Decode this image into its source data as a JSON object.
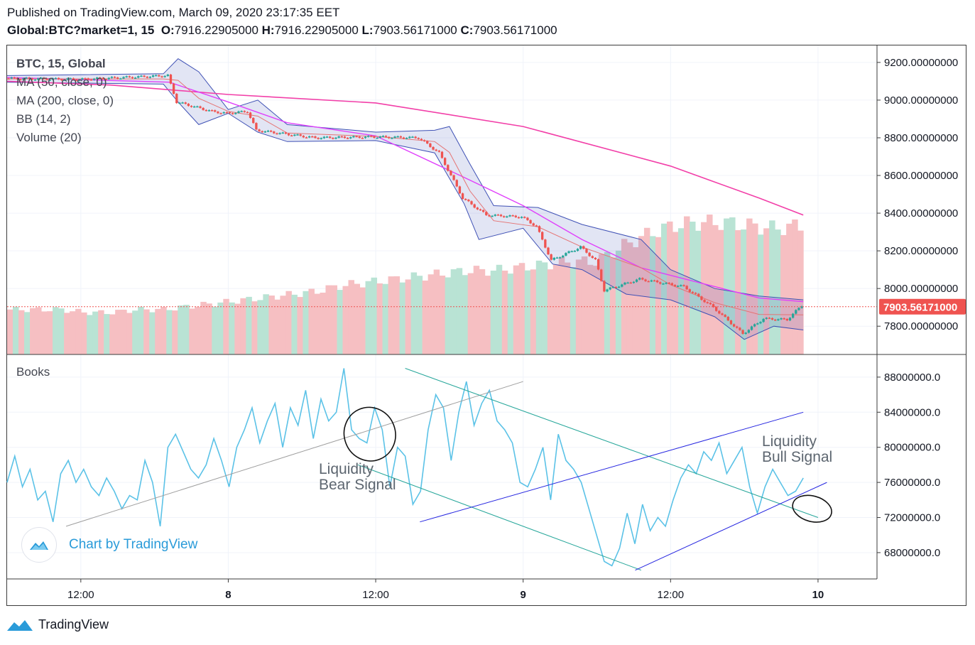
{
  "header": {
    "published": "Published on TradingView.com, March 09, 2020 23:17:35 EET",
    "symbol": "Global:BTC?market=1, 15",
    "o_label": "O:",
    "o": "7916.22905000",
    "h_label": "H:",
    "h": "7916.22905000",
    "l_label": "L:",
    "l": "7903.56171000",
    "c_label": "C:",
    "c": "7903.56171000"
  },
  "legend": {
    "title": "BTC, 15, Global",
    "ma50": "MA (50, close, 0)",
    "ma200": "MA (200, close, 0)",
    "bb": "BB (14, 2)",
    "volume": "Volume (20)",
    "books": "Books"
  },
  "annotations": {
    "bear": [
      "Liquidity",
      "Bear Signal"
    ],
    "bull": [
      "Liquidity",
      "Bull Signal"
    ]
  },
  "branding": {
    "badge": "Chart by TradingView",
    "footer": "TradingView"
  },
  "colors": {
    "up": "#26a69a",
    "down": "#ef5350",
    "ma50": "#e040fb",
    "ma200": "#f23fa8",
    "bb": "#3f51b5",
    "books": "#5bc2e7",
    "price_tag": "#ef5350",
    "teal_line": "#26a69a",
    "blue_line": "#2424e0",
    "trend_gray": "#9e9e9e"
  },
  "chart_data": [
    {
      "type": "candlestick",
      "title": "BTC, 15, Global",
      "y_ticks": [
        "9200.00000000",
        "9000.00000000",
        "8800.00000000",
        "8600.00000000",
        "8400.00000000",
        "8200.00000000",
        "8000.00000000",
        "7800.00000000"
      ],
      "y_tick_values": [
        9200,
        9000,
        8800,
        8600,
        8400,
        8200,
        8000,
        7800
      ],
      "ylim": [
        7650,
        9290
      ],
      "x_ticks": [
        "12:00",
        "8",
        "12:00",
        "9",
        "12:00",
        "10"
      ],
      "x_tick_values": [
        0.5,
        1,
        1.5,
        2,
        2.5,
        3
      ],
      "xlim": [
        0.25,
        3.2
      ],
      "last_price": 7903.56171,
      "last_price_label": "7903.56171000",
      "price_path": [
        [
          0.25,
          9115
        ],
        [
          0.5,
          9110
        ],
        [
          0.8,
          9130
        ],
        [
          0.83,
          8990
        ],
        [
          0.95,
          8940
        ],
        [
          1.0,
          8930
        ],
        [
          1.07,
          8940
        ],
        [
          1.1,
          8840
        ],
        [
          1.3,
          8800
        ],
        [
          1.5,
          8805
        ],
        [
          1.65,
          8800
        ],
        [
          1.72,
          8720
        ],
        [
          1.8,
          8480
        ],
        [
          1.88,
          8390
        ],
        [
          2.0,
          8380
        ],
        [
          2.05,
          8330
        ],
        [
          2.1,
          8150
        ],
        [
          2.2,
          8220
        ],
        [
          2.25,
          8150
        ],
        [
          2.28,
          7990
        ],
        [
          2.4,
          8050
        ],
        [
          2.55,
          8010
        ],
        [
          2.65,
          7900
        ],
        [
          2.75,
          7760
        ],
        [
          2.82,
          7840
        ],
        [
          2.9,
          7835
        ],
        [
          2.95,
          7910
        ]
      ],
      "ma200_path": [
        [
          0.25,
          9100
        ],
        [
          0.6,
          9080
        ],
        [
          1.0,
          9030
        ],
        [
          1.5,
          8985
        ],
        [
          2.0,
          8860
        ],
        [
          2.5,
          8650
        ],
        [
          2.8,
          8480
        ],
        [
          2.95,
          8390
        ]
      ],
      "ma50_path": [
        [
          0.25,
          9120
        ],
        [
          0.8,
          9095
        ],
        [
          1.0,
          8990
        ],
        [
          1.2,
          8880
        ],
        [
          1.5,
          8810
        ],
        [
          1.8,
          8590
        ],
        [
          2.0,
          8440
        ],
        [
          2.2,
          8260
        ],
        [
          2.4,
          8110
        ],
        [
          2.6,
          8030
        ],
        [
          2.8,
          7950
        ],
        [
          2.95,
          7930
        ]
      ],
      "bb_upper": [
        [
          0.25,
          9130
        ],
        [
          0.78,
          9140
        ],
        [
          0.83,
          9220
        ],
        [
          0.9,
          9150
        ],
        [
          1.0,
          8950
        ],
        [
          1.1,
          9000
        ],
        [
          1.2,
          8870
        ],
        [
          1.5,
          8830
        ],
        [
          1.7,
          8840
        ],
        [
          1.75,
          8860
        ],
        [
          1.82,
          8660
        ],
        [
          1.9,
          8440
        ],
        [
          2.05,
          8430
        ],
        [
          2.2,
          8340
        ],
        [
          2.4,
          8260
        ],
        [
          2.5,
          8100
        ],
        [
          2.65,
          8000
        ],
        [
          2.8,
          7960
        ],
        [
          2.95,
          7940
        ]
      ],
      "bb_lower": [
        [
          0.25,
          9095
        ],
        [
          0.78,
          9085
        ],
        [
          0.83,
          8990
        ],
        [
          0.9,
          8870
        ],
        [
          1.0,
          8930
        ],
        [
          1.1,
          8830
        ],
        [
          1.2,
          8780
        ],
        [
          1.5,
          8785
        ],
        [
          1.7,
          8720
        ],
        [
          1.8,
          8450
        ],
        [
          1.85,
          8260
        ],
        [
          2.0,
          8320
        ],
        [
          2.1,
          8130
        ],
        [
          2.2,
          8100
        ],
        [
          2.35,
          7970
        ],
        [
          2.5,
          7940
        ],
        [
          2.65,
          7850
        ],
        [
          2.75,
          7730
        ],
        [
          2.85,
          7800
        ],
        [
          2.95,
          7780
        ]
      ],
      "volume_level": [
        0.15,
        0.15,
        0.15,
        0.14,
        0.14,
        0.15,
        0.15,
        0.16,
        0.17,
        0.18,
        0.19,
        0.2,
        0.21,
        0.23,
        0.24,
        0.25,
        0.26,
        0.27,
        0.28,
        0.28,
        0.29,
        0.3,
        0.31,
        0.31,
        0.36,
        0.4,
        0.43,
        0.44,
        0.44,
        0.43,
        0.42,
        0.43
      ]
    },
    {
      "type": "line",
      "title": "Books",
      "series_name": "Books",
      "y_ticks": [
        "88000000.0",
        "84000000.0",
        "80000000.0",
        "76000000.0",
        "72000000.0",
        "68000000.0"
      ],
      "y_tick_values": [
        88000000,
        84000000,
        80000000,
        76000000,
        72000000,
        68000000
      ],
      "ylim": [
        65000000,
        90500000
      ],
      "x_ticks": [
        "12:00",
        "8",
        "12:00",
        "9",
        "12:00",
        "10"
      ],
      "xlim": [
        0.25,
        3.2
      ],
      "values": [
        76000000,
        79000000,
        75500000,
        77500000,
        74000000,
        75000000,
        71500000,
        77000000,
        78500000,
        76000000,
        77500000,
        75500000,
        74500000,
        76500000,
        75000000,
        73000000,
        74500000,
        74000000,
        78500000,
        76000000,
        71000000,
        80000000,
        81500000,
        79500000,
        77500000,
        76500000,
        78000000,
        81000000,
        78500000,
        75500000,
        80000000,
        82000000,
        84500000,
        80500000,
        83000000,
        85000000,
        80000000,
        84500000,
        82500000,
        86500000,
        81000000,
        85500000,
        83000000,
        84000000,
        89000000,
        82000000,
        81000000,
        80500000,
        84500000,
        82000000,
        75500000,
        80000000,
        79000000,
        73500000,
        75000000,
        82000000,
        86000000,
        84500000,
        78500000,
        84000000,
        87500000,
        82500000,
        85000000,
        86500000,
        83000000,
        82000000,
        80500000,
        76000000,
        75500000,
        77500000,
        80000000,
        74000000,
        81500000,
        78500000,
        77500000,
        76000000,
        73000000,
        70000000,
        67000000,
        66500000,
        68500000,
        72500000,
        69000000,
        73500000,
        70500000,
        72000000,
        71000000,
        74000000,
        76500000,
        78000000,
        77000000,
        79500000,
        78500000,
        80500000,
        77000000,
        78500000,
        80000000,
        75500000,
        72500000,
        75500000,
        77500000,
        76000000,
        74500000,
        75000000,
        76500000
      ],
      "trend_lines": [
        {
          "kind": "gray",
          "from": [
            0.45,
            71000000
          ],
          "to": [
            2.0,
            87500000
          ]
        },
        {
          "kind": "teal",
          "from": [
            1.44,
            78000000
          ],
          "to": [
            2.4,
            66000000
          ]
        },
        {
          "kind": "teal",
          "from": [
            1.6,
            89000000
          ],
          "to": [
            3.0,
            72000000
          ]
        },
        {
          "kind": "blue",
          "from": [
            1.65,
            71500000
          ],
          "to": [
            2.95,
            84000000
          ]
        },
        {
          "kind": "blue",
          "from": [
            2.38,
            66000000
          ],
          "to": [
            3.03,
            76000000
          ]
        }
      ],
      "marks": [
        {
          "kind": "circle",
          "at": [
            1.48,
            81500000
          ]
        },
        {
          "kind": "circle",
          "at": [
            2.98,
            73000000
          ]
        }
      ]
    }
  ]
}
